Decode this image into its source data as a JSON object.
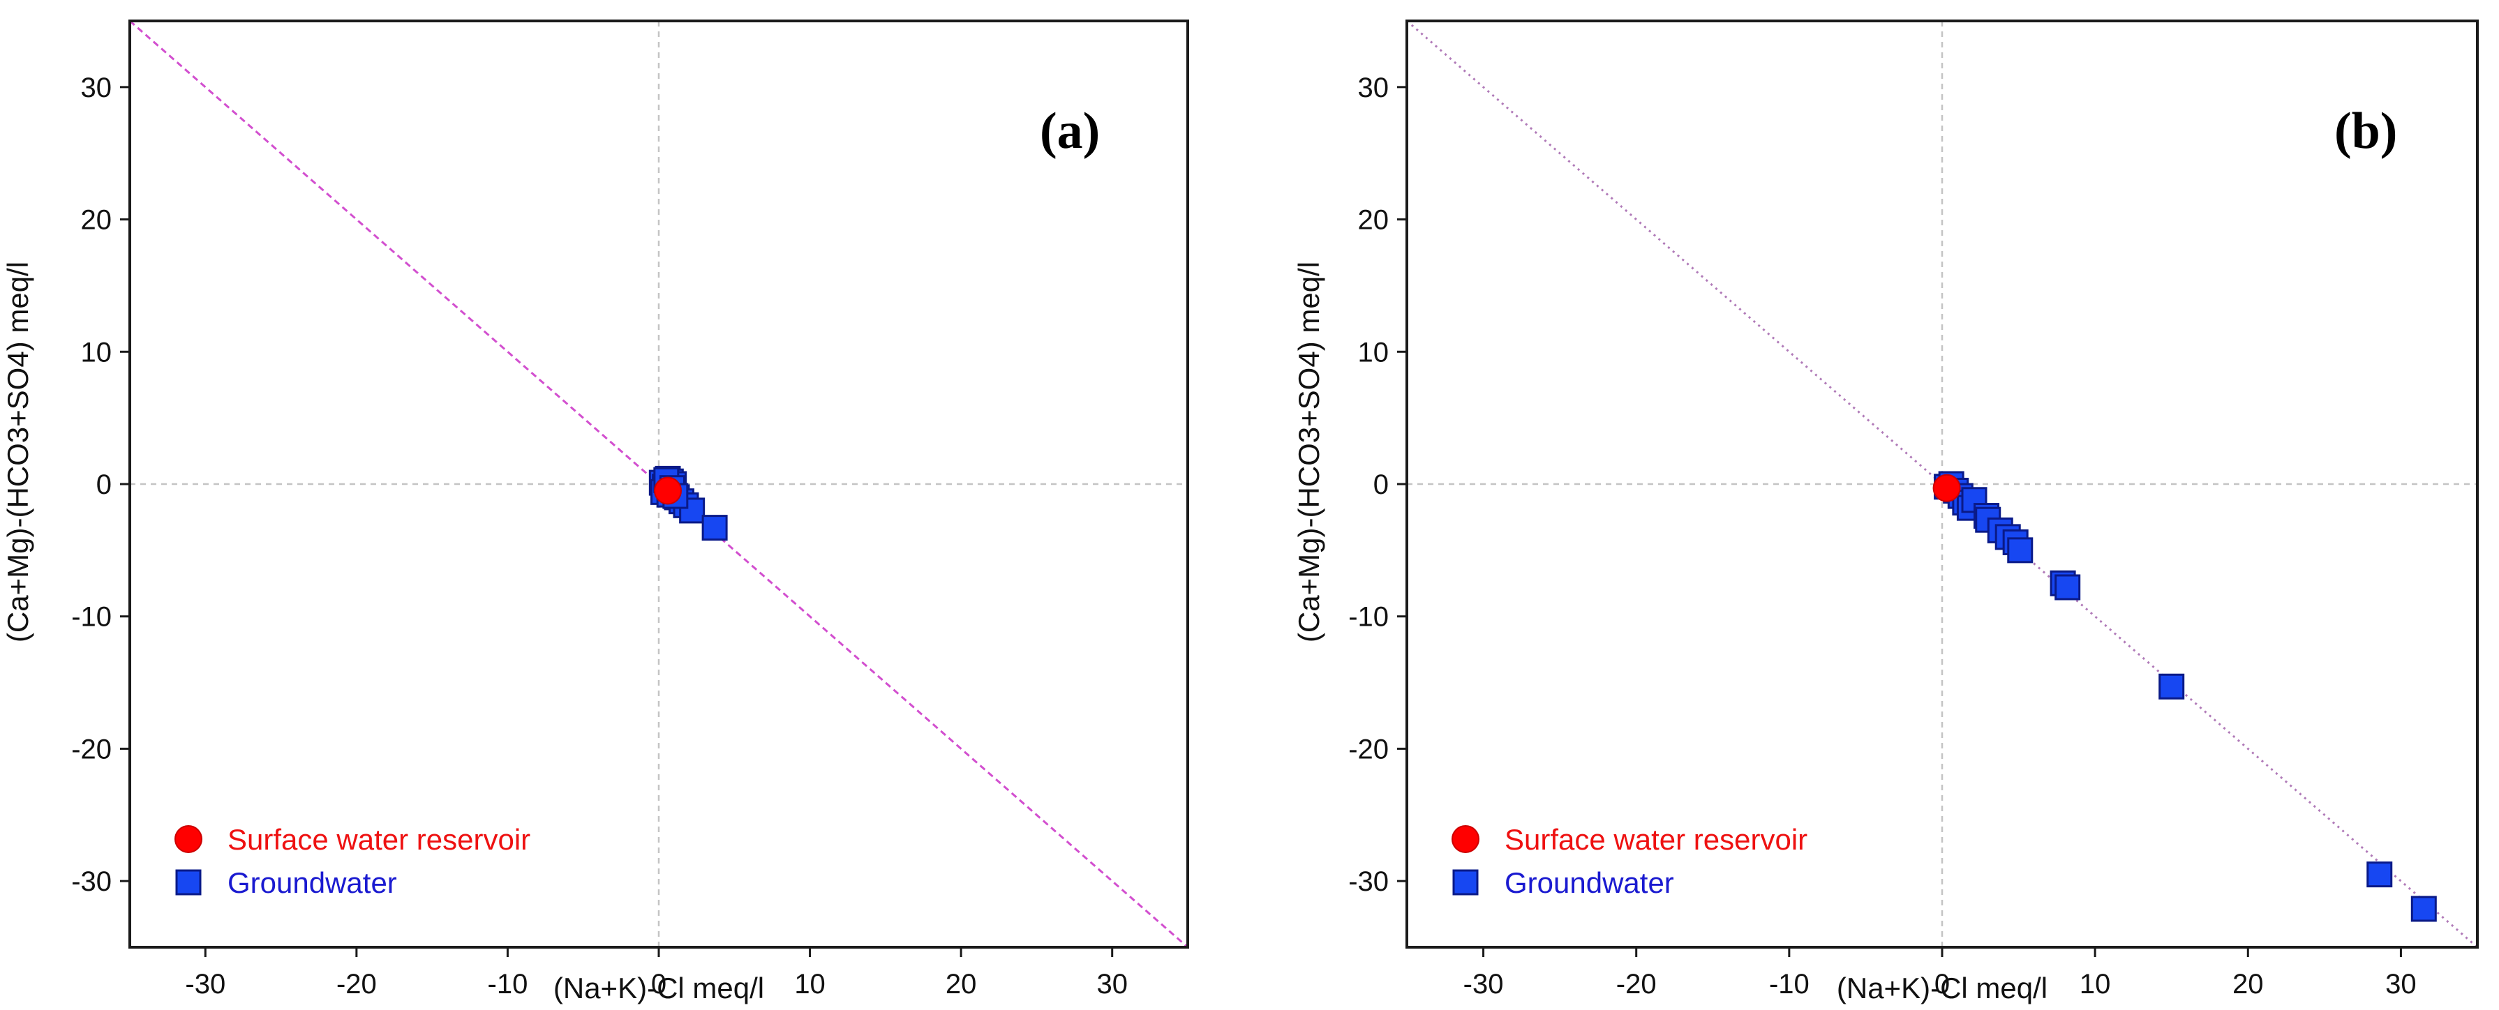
{
  "colors": {
    "surface": "#ff0000",
    "surface_stroke": "#cc0000",
    "groundwater": "#1747f2",
    "groundwater_stroke": "#0a1a88",
    "diag_a": "#d24fcf",
    "diag_b": "#b07ab8",
    "grid": "#c4c4c4",
    "legend_surface_text": "#ee1111",
    "legend_groundwater_text": "#1a1ad0"
  },
  "chart_data": [
    {
      "type": "scatter",
      "panel_label": "(a)",
      "xlabel": "(Na+K)-Cl meq/l",
      "ylabel": "(Ca+Mg)-(HCO3+SO4) meq/l",
      "xlim": [
        -35,
        35
      ],
      "ylim": [
        -35,
        35
      ],
      "xticks": [
        -30,
        -20,
        -10,
        0,
        10,
        20,
        30
      ],
      "yticks": [
        -30,
        -20,
        -10,
        0,
        10,
        20,
        30
      ],
      "reference_line": "y = -x",
      "reference_line_style": "dashed",
      "legend": [
        "Surface water reservoir",
        "Groundwater"
      ],
      "legend_position": "bottom-left",
      "series": [
        {
          "name": "Surface water reservoir",
          "marker": "circle",
          "x": [
            0.6
          ],
          "y": [
            -0.5
          ]
        },
        {
          "name": "Groundwater",
          "marker": "square",
          "x": [
            0.2,
            0.4,
            0.6,
            0.8,
            1.0,
            0.3,
            0.7,
            1.2,
            1.5,
            0.5,
            1.8,
            2.2,
            0.9,
            1.1,
            3.7
          ],
          "y": [
            0.1,
            -0.2,
            0.4,
            0.2,
            0.0,
            -0.6,
            -0.8,
            -1.0,
            -1.3,
            0.3,
            -1.6,
            -2.0,
            -0.3,
            -0.9,
            -3.3
          ]
        }
      ]
    },
    {
      "type": "scatter",
      "panel_label": "(b)",
      "xlabel": "(Na+K)-Cl meq/l",
      "ylabel": "(Ca+Mg)-(HCO3+SO4) meq/l",
      "xlim": [
        -35,
        35
      ],
      "ylim": [
        -35,
        35
      ],
      "xticks": [
        -30,
        -20,
        -10,
        0,
        10,
        20,
        30
      ],
      "yticks": [
        -30,
        -20,
        -10,
        0,
        10,
        20,
        30
      ],
      "reference_line": "y = -x",
      "reference_line_style": "dotted",
      "legend": [
        "Surface water reservoir",
        "Groundwater"
      ],
      "legend_position": "bottom-left",
      "series": [
        {
          "name": "Surface water reservoir",
          "marker": "circle",
          "x": [
            0.3
          ],
          "y": [
            -0.3
          ]
        },
        {
          "name": "Groundwater",
          "marker": "square",
          "x": [
            0.3,
            0.6,
            0.9,
            1.2,
            1.5,
            1.8,
            2.1,
            2.9,
            3.0,
            3.8,
            4.3,
            4.8,
            5.1,
            7.9,
            8.2,
            15.0,
            28.6,
            31.5
          ],
          "y": [
            -0.2,
            0.0,
            -0.5,
            -0.9,
            -1.4,
            -1.8,
            -1.2,
            -2.4,
            -2.7,
            -3.5,
            -4.0,
            -4.4,
            -5.0,
            -7.5,
            -7.8,
            -15.3,
            -29.5,
            -32.1
          ]
        }
      ]
    }
  ]
}
